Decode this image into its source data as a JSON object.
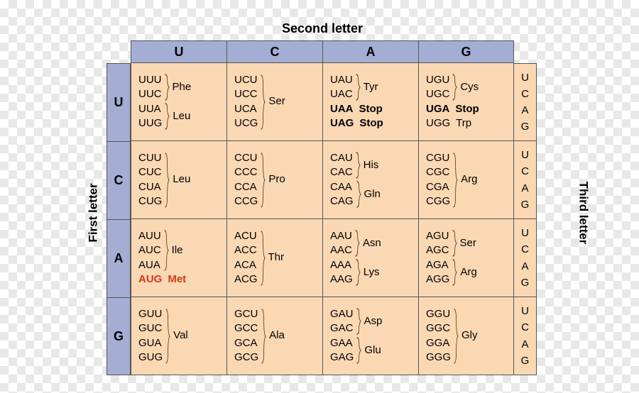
{
  "labels": {
    "first": "First letter",
    "second": "Second letter",
    "third": "Third letter"
  },
  "colors": {
    "header_bg": "#a4aed4",
    "cell_bg": "#fbd8b4",
    "border": "#555555",
    "highlight": "#d13a1f"
  },
  "bases": [
    "U",
    "C",
    "A",
    "G"
  ],
  "entries_note": "Grouped codon table. Each cell is [firstLetter][secondLetter]. 'groups' list adjacent codons sharing an amino acid and drawn with a brace. 'lines' are single codons rendered on their own line (bold for stops, red for Met/start).",
  "cells": {
    "U": {
      "U": {
        "groups": [
          {
            "codons": [
              "UUU",
              "UUC"
            ],
            "aa": "Phe"
          },
          {
            "codons": [
              "UUA",
              "UUG"
            ],
            "aa": "Leu"
          }
        ]
      },
      "C": {
        "groups": [
          {
            "codons": [
              "UCU",
              "UCC",
              "UCA",
              "UCG"
            ],
            "aa": "Ser"
          }
        ]
      },
      "A": {
        "groups": [
          {
            "codons": [
              "UAU",
              "UAC"
            ],
            "aa": "Tyr"
          }
        ],
        "lines": [
          {
            "codon": "UAA",
            "aa": "Stop",
            "bold": true
          },
          {
            "codon": "UAG",
            "aa": "Stop",
            "bold": true
          }
        ]
      },
      "G": {
        "groups": [
          {
            "codons": [
              "UGU",
              "UGC"
            ],
            "aa": "Cys"
          }
        ],
        "lines": [
          {
            "codon": "UGA",
            "aa": "Stop",
            "bold": true
          },
          {
            "codon": "UGG",
            "aa": "Trp"
          }
        ]
      }
    },
    "C": {
      "U": {
        "groups": [
          {
            "codons": [
              "CUU",
              "CUC",
              "CUA",
              "CUG"
            ],
            "aa": "Leu"
          }
        ]
      },
      "C": {
        "groups": [
          {
            "codons": [
              "CCU",
              "CCC",
              "CCA",
              "CCG"
            ],
            "aa": "Pro"
          }
        ]
      },
      "A": {
        "groups": [
          {
            "codons": [
              "CAU",
              "CAC"
            ],
            "aa": "His"
          },
          {
            "codons": [
              "CAA",
              "CAG"
            ],
            "aa": "Gln"
          }
        ]
      },
      "G": {
        "groups": [
          {
            "codons": [
              "CGU",
              "CGC",
              "CGA",
              "CGG"
            ],
            "aa": "Arg"
          }
        ]
      }
    },
    "A": {
      "U": {
        "groups": [
          {
            "codons": [
              "AUU",
              "AUC",
              "AUA"
            ],
            "aa": "Ile"
          }
        ],
        "lines": [
          {
            "codon": "AUG",
            "aa": "Met",
            "red": true
          }
        ]
      },
      "C": {
        "groups": [
          {
            "codons": [
              "ACU",
              "ACC",
              "ACA",
              "ACG"
            ],
            "aa": "Thr"
          }
        ]
      },
      "A": {
        "groups": [
          {
            "codons": [
              "AAU",
              "AAC"
            ],
            "aa": "Asn"
          },
          {
            "codons": [
              "AAA",
              "AAG"
            ],
            "aa": "Lys"
          }
        ]
      },
      "G": {
        "groups": [
          {
            "codons": [
              "AGU",
              "AGC"
            ],
            "aa": "Ser"
          },
          {
            "codons": [
              "AGA",
              "AGG"
            ],
            "aa": "Arg"
          }
        ]
      }
    },
    "G": {
      "U": {
        "groups": [
          {
            "codons": [
              "GUU",
              "GUC",
              "GUA",
              "GUG"
            ],
            "aa": "Val"
          }
        ]
      },
      "C": {
        "groups": [
          {
            "codons": [
              "GCU",
              "GCC",
              "GCA",
              "GCG"
            ],
            "aa": "Ala"
          }
        ]
      },
      "A": {
        "groups": [
          {
            "codons": [
              "GAU",
              "GAC"
            ],
            "aa": "Asp"
          },
          {
            "codons": [
              "GAA",
              "GAG"
            ],
            "aa": "Glu"
          }
        ]
      },
      "G": {
        "groups": [
          {
            "codons": [
              "GGU",
              "GGC",
              "GGA",
              "GGG"
            ],
            "aa": "Gly"
          }
        ]
      }
    }
  }
}
